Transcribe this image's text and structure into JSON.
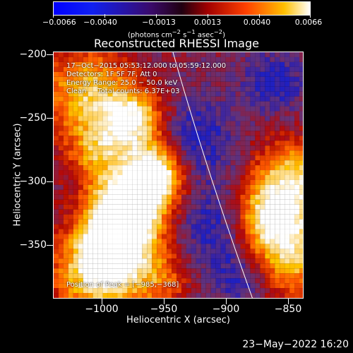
{
  "colorbar": {
    "ticks": [
      "−0.0066",
      "−0.0040",
      "−0.0013",
      "0.0013",
      "0.0040",
      "0.0066"
    ],
    "units_html": "(photons cm<sup>−2</sup> s<sup>−1</sup> asec<sup>−2</sup>)"
  },
  "title": "Reconstructed RHESSI Image",
  "info": {
    "time": "17−Oct−2015 05:53:12.000 to 05:59:12.000",
    "detectors": "Detectors: 1F 5F 7F, Att 0",
    "energy": "Energy Range: 25.0 − 50.0 keV",
    "algorithm": "Clean     Total counts: 6.37E+03",
    "peak": "Position of Peak = [−985,−368]"
  },
  "axes": {
    "xlabel": "Heliocentric X (arcsec)",
    "ylabel": "Heliocentric Y (arcsec)",
    "xticks": [
      "−1000",
      "−950",
      "−900",
      "−850"
    ],
    "yticks": [
      "−200",
      "−250",
      "−300",
      "−350"
    ]
  },
  "timestamp": "23−May−2022 16:20"
}
